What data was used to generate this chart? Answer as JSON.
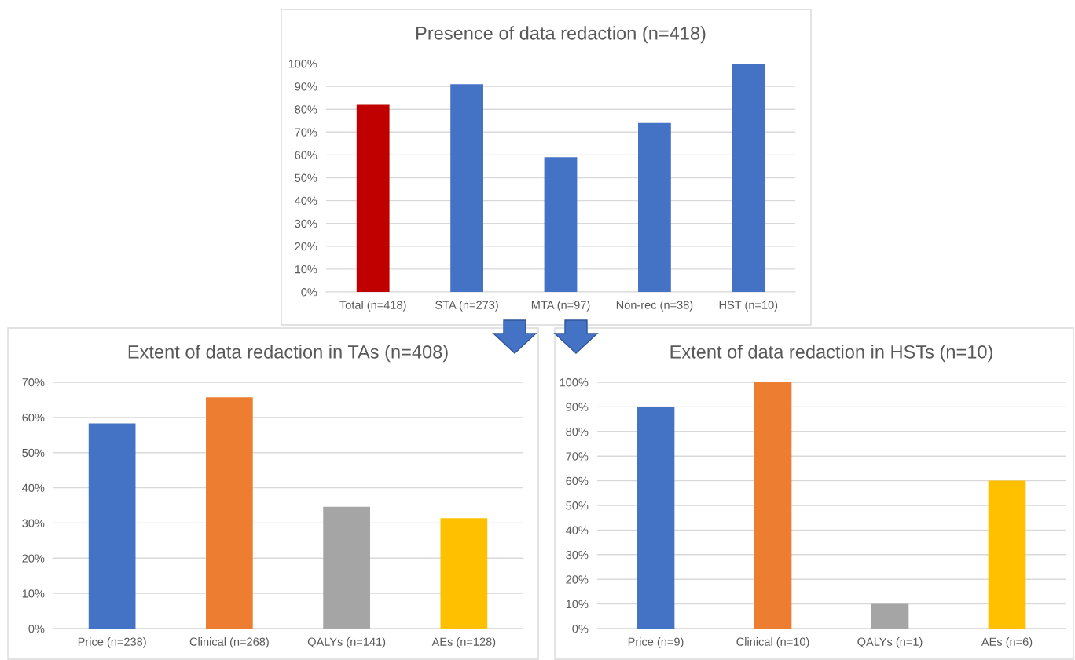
{
  "chart_data": [
    {
      "type": "bar",
      "title": "Presence of data redaction (n=418)",
      "categories": [
        "Total (n=418)",
        "STA (n=273)",
        "MTA (n=97)",
        "Non-rec (n=38)",
        "HST (n=10)"
      ],
      "values": [
        82,
        91,
        59,
        74,
        100
      ],
      "colors": [
        "#c00000",
        "#4472c4",
        "#4472c4",
        "#4472c4",
        "#4472c4"
      ],
      "ylim": [
        0,
        100
      ],
      "yticks": [
        {
          "value": 0,
          "label": "0%"
        },
        {
          "value": 10,
          "label": "10%"
        },
        {
          "value": 20,
          "label": "20%"
        },
        {
          "value": 30,
          "label": "30%"
        },
        {
          "value": 40,
          "label": "40%"
        },
        {
          "value": 50,
          "label": "50%"
        },
        {
          "value": 60,
          "label": "60%"
        },
        {
          "value": 70,
          "label": "70%"
        },
        {
          "value": 80,
          "label": "80%"
        },
        {
          "value": 90,
          "label": "90%"
        },
        {
          "value": 100,
          "label": "100%"
        }
      ],
      "grid": "y"
    },
    {
      "type": "bar",
      "title": "Extent of data redaction in TAs (n=408)",
      "categories": [
        "Price (n=238)",
        "Clinical (n=268)",
        "QALYs (n=141)",
        "AEs (n=128)"
      ],
      "values": [
        58.3,
        65.7,
        34.6,
        31.4
      ],
      "colors": [
        "#4472c4",
        "#ed7d31",
        "#a5a5a5",
        "#ffc000"
      ],
      "ylim": [
        0,
        70
      ],
      "yticks": [
        {
          "value": 0,
          "label": "0%"
        },
        {
          "value": 10,
          "label": "10%"
        },
        {
          "value": 20,
          "label": "20%"
        },
        {
          "value": 30,
          "label": "30%"
        },
        {
          "value": 40,
          "label": "40%"
        },
        {
          "value": 50,
          "label": "50%"
        },
        {
          "value": 60,
          "label": "60%"
        },
        {
          "value": 70,
          "label": "70%"
        }
      ],
      "grid": "y"
    },
    {
      "type": "bar",
      "title": "Extent of data redaction in HSTs (n=10)",
      "categories": [
        "Price (n=9)",
        "Clinical (n=10)",
        "QALYs (n=1)",
        "AEs (n=6)"
      ],
      "values": [
        90,
        100,
        10,
        60
      ],
      "colors": [
        "#4472c4",
        "#ed7d31",
        "#a5a5a5",
        "#ffc000"
      ],
      "ylim": [
        0,
        100
      ],
      "yticks": [
        {
          "value": 0,
          "label": "0%"
        },
        {
          "value": 10,
          "label": "10%"
        },
        {
          "value": 20,
          "label": "20%"
        },
        {
          "value": 30,
          "label": "30%"
        },
        {
          "value": 40,
          "label": "40%"
        },
        {
          "value": 50,
          "label": "50%"
        },
        {
          "value": 60,
          "label": "60%"
        },
        {
          "value": 70,
          "label": "70%"
        },
        {
          "value": 80,
          "label": "80%"
        },
        {
          "value": 90,
          "label": "90%"
        },
        {
          "value": 100,
          "label": "100%"
        }
      ],
      "grid": "y"
    }
  ]
}
